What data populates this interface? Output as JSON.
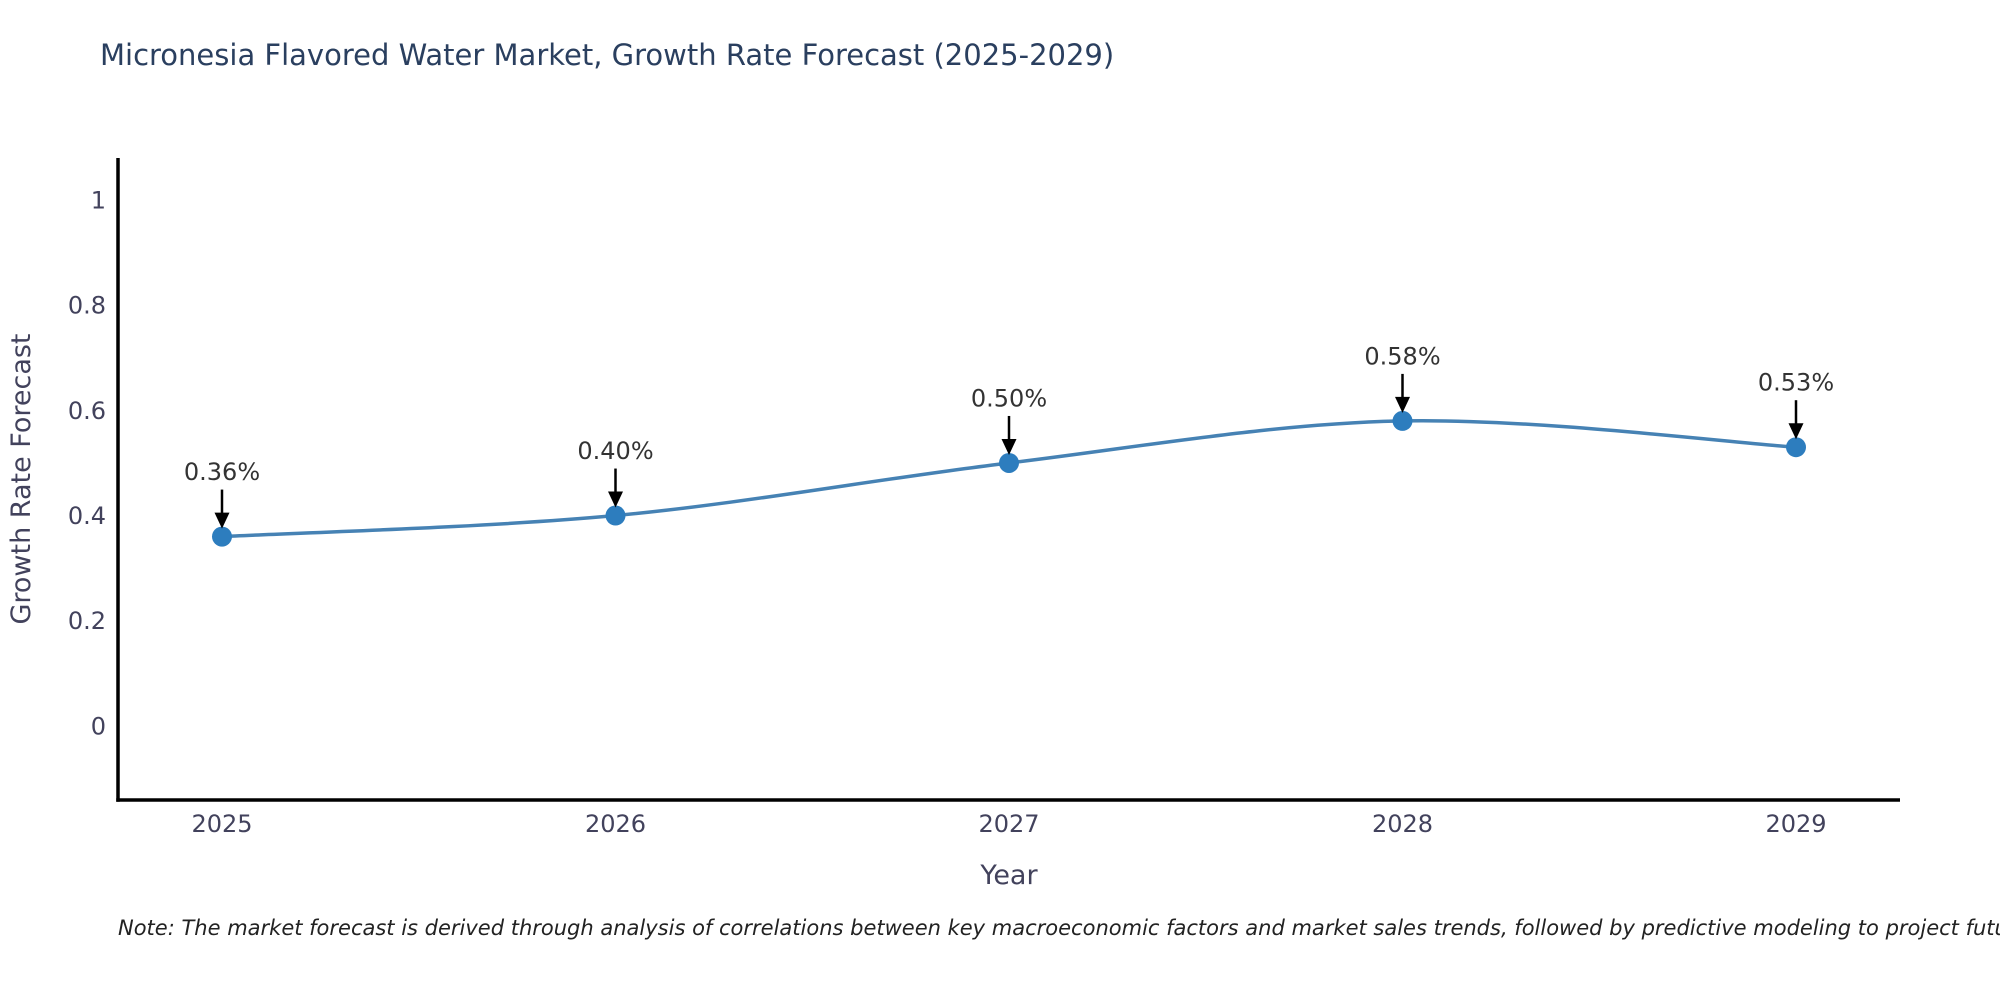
{
  "page": {
    "title": "Micronesia Flavored Water Market, Growth Rate Forecast (2025-2029)",
    "note": "Note: The market forecast is derived through analysis of correlations between key macroeconomic factors and market sales trends, followed by predictive modeling to project future sales"
  },
  "chart_data": {
    "type": "line",
    "title": "Micronesia Flavored Water Market, Growth Rate Forecast (2025-2029)",
    "xlabel": "Year",
    "ylabel": "Growth Rate Forecast",
    "categories": [
      "2025",
      "2026",
      "2027",
      "2028",
      "2029"
    ],
    "values": [
      0.36,
      0.4,
      0.5,
      0.58,
      0.53
    ],
    "point_labels": [
      "0.36%",
      "0.40%",
      "0.50%",
      "0.58%",
      "0.53%"
    ],
    "yticks": [
      0,
      0.2,
      0.4,
      0.6,
      0.8,
      1
    ],
    "ytick_labels": [
      "0",
      "0.2",
      "0.4",
      "0.6",
      "0.8",
      "1"
    ],
    "ylim": [
      -0.141,
      1.08
    ],
    "grid": false,
    "legend": "none",
    "annotation_style": "arrow-down-to-point",
    "styles": {
      "line_color": "#4682b4",
      "marker_color": "#2d7dbe",
      "axis_color": "#000000",
      "tick_color": "#42425c",
      "axis_title_color": "#42425c",
      "title_color": "#2a3f5f",
      "annotation_text_color": "#333333",
      "arrow_color": "#000000",
      "background": "#ffffff"
    }
  }
}
